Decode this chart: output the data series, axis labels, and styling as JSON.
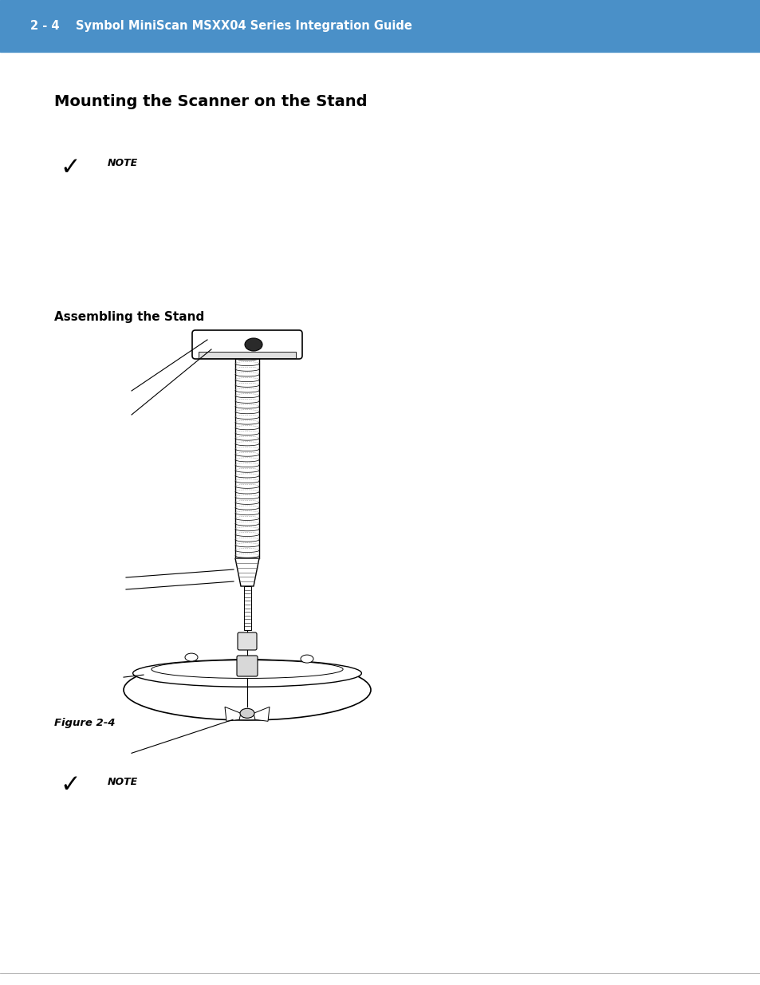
{
  "header_text": "2 - 4    Symbol MiniScan MSXX04 Series Integration Guide",
  "header_bg": "#4A90C8",
  "header_text_color": "#FFFFFF",
  "title_text": "Mounting the Scanner on the Stand",
  "title_fontsize": 14,
  "subtitle_text": "Assembling the Stand",
  "subtitle_fontsize": 11,
  "note_label": "NOTE",
  "fig_caption": "Figure 2-4",
  "bg_color": "#FFFFFF",
  "text_color": "#000000"
}
